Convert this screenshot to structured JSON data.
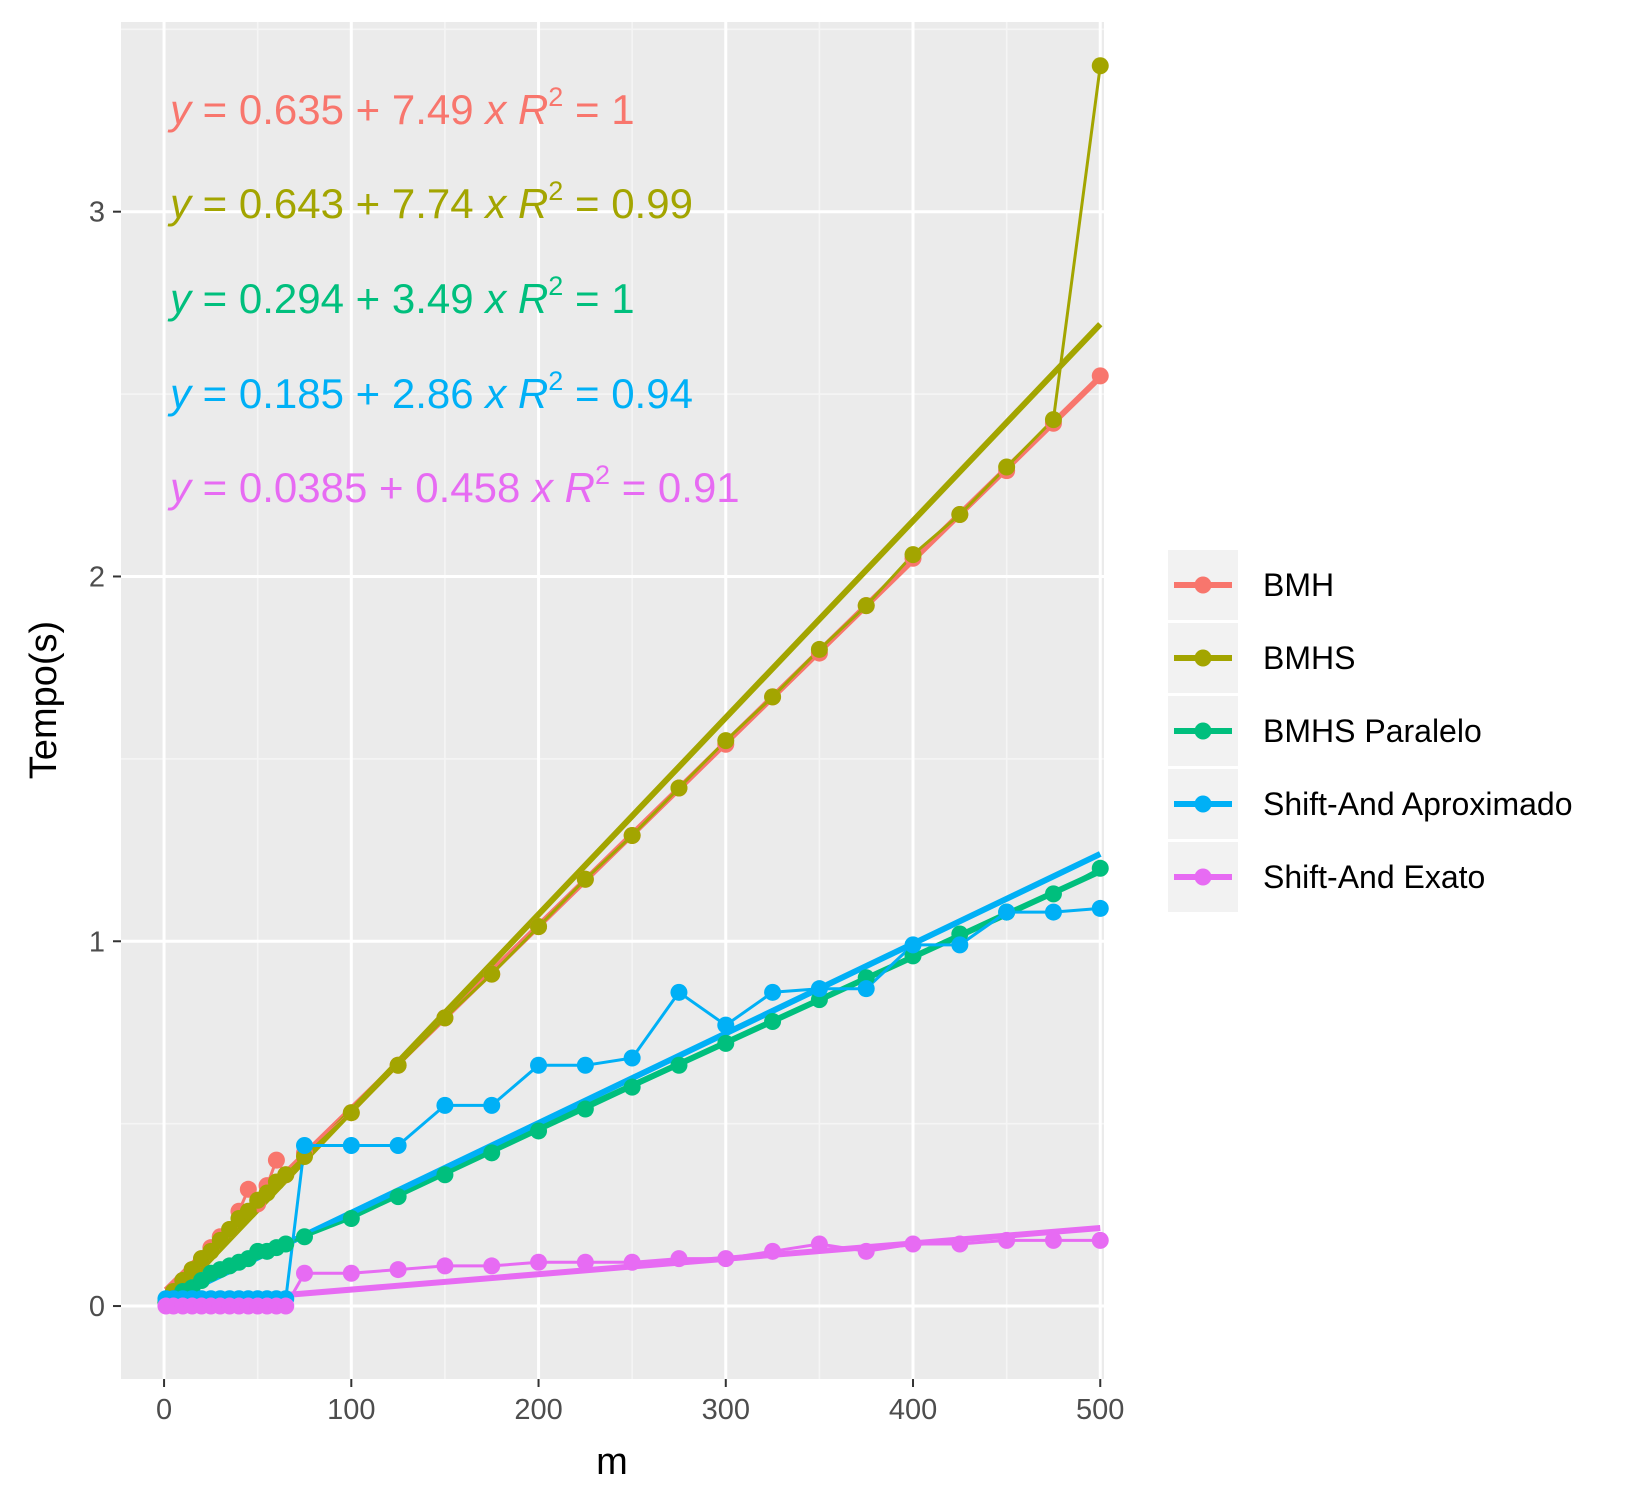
{
  "chart_data": {
    "type": "line",
    "xlabel": "m",
    "ylabel": "Tempo(s)",
    "xlim": [
      -23,
      502
    ],
    "ylim": [
      -0.2,
      3.52
    ],
    "x_ticks": [
      0,
      100,
      200,
      300,
      400,
      500
    ],
    "y_ticks": [
      0,
      1,
      2,
      3
    ],
    "grid": true,
    "legend_position": "right",
    "series": [
      {
        "name": "BMH",
        "color": "#F8766D",
        "x": [
          1,
          5,
          10,
          15,
          20,
          25,
          30,
          35,
          40,
          45,
          50,
          55,
          60,
          65,
          75,
          100,
          125,
          150,
          175,
          200,
          225,
          250,
          275,
          300,
          325,
          350,
          375,
          400,
          425,
          450,
          475,
          500
        ],
        "y": [
          0.01,
          0.04,
          0.07,
          0.1,
          0.13,
          0.16,
          0.19,
          0.21,
          0.26,
          0.32,
          0.28,
          0.33,
          0.4,
          0.36,
          0.42,
          0.53,
          0.66,
          0.79,
          0.91,
          1.04,
          1.17,
          1.29,
          1.42,
          1.54,
          1.67,
          1.79,
          1.92,
          2.05,
          2.17,
          2.29,
          2.42,
          2.55
        ],
        "fit": {
          "intercept": 0.635,
          "slope": 7.49,
          "r2": 1
        },
        "equation": {
          "lhs": "y",
          "eq": "=",
          "intercept": "0.635",
          "plus": "+",
          "slope": "7.49",
          "x": "x",
          "r": "R",
          "sup": "2",
          "r2": "1"
        }
      },
      {
        "name": "BMHS",
        "color": "#A3A500",
        "x": [
          1,
          5,
          10,
          15,
          20,
          25,
          30,
          35,
          40,
          45,
          50,
          55,
          60,
          65,
          75,
          100,
          125,
          150,
          175,
          200,
          225,
          250,
          275,
          300,
          325,
          350,
          375,
          400,
          425,
          450,
          475,
          500
        ],
        "y": [
          0.01,
          0.04,
          0.07,
          0.1,
          0.13,
          0.15,
          0.18,
          0.21,
          0.24,
          0.26,
          0.29,
          0.31,
          0.34,
          0.36,
          0.41,
          0.53,
          0.66,
          0.79,
          0.91,
          1.04,
          1.17,
          1.29,
          1.42,
          1.55,
          1.67,
          1.8,
          1.92,
          2.06,
          2.17,
          2.3,
          2.43,
          3.4
        ],
        "fit": {
          "intercept": 0.643,
          "slope": 7.74,
          "r2": 0.99
        },
        "equation": {
          "lhs": "y",
          "eq": "=",
          "intercept": "0.643",
          "plus": "+",
          "slope": "7.74",
          "x": "x",
          "r": "R",
          "sup": "2",
          "r2": "0.99"
        }
      },
      {
        "name": "BMHS Paralelo",
        "color": "#00BF7D",
        "x": [
          1,
          5,
          10,
          15,
          20,
          25,
          30,
          35,
          40,
          45,
          50,
          55,
          60,
          65,
          75,
          100,
          125,
          150,
          175,
          200,
          225,
          250,
          275,
          300,
          325,
          350,
          375,
          400,
          425,
          450,
          475,
          500
        ],
        "y": [
          0.01,
          0.02,
          0.04,
          0.05,
          0.07,
          0.09,
          0.1,
          0.11,
          0.12,
          0.13,
          0.15,
          0.15,
          0.16,
          0.17,
          0.19,
          0.24,
          0.3,
          0.36,
          0.42,
          0.48,
          0.54,
          0.6,
          0.66,
          0.72,
          0.78,
          0.84,
          0.9,
          0.96,
          1.02,
          1.08,
          1.13,
          1.2
        ],
        "fit": {
          "intercept": 0.294,
          "slope": 3.49,
          "r2": 1
        },
        "equation": {
          "lhs": "y",
          "eq": "=",
          "intercept": "0.294",
          "plus": "+",
          "slope": "3.49",
          "x": "x",
          "r": "R",
          "sup": "2",
          "r2": "1"
        }
      },
      {
        "name": "Shift-And Aproximado",
        "color": "#00B0F6",
        "x": [
          1,
          5,
          10,
          15,
          20,
          25,
          30,
          35,
          40,
          45,
          50,
          55,
          60,
          65,
          75,
          100,
          125,
          150,
          175,
          200,
          225,
          250,
          275,
          300,
          325,
          350,
          375,
          400,
          425,
          450,
          475,
          500
        ],
        "y": [
          0.02,
          0.02,
          0.02,
          0.02,
          0.02,
          0.02,
          0.02,
          0.02,
          0.02,
          0.02,
          0.02,
          0.02,
          0.02,
          0.02,
          0.44,
          0.44,
          0.44,
          0.55,
          0.55,
          0.66,
          0.66,
          0.68,
          0.86,
          0.77,
          0.86,
          0.87,
          0.87,
          0.99,
          0.99,
          1.08,
          1.08,
          1.09
        ],
        "fit": {
          "intercept": 0.185,
          "slope": 2.86,
          "r2": 0.94
        },
        "equation": {
          "lhs": "y",
          "eq": "=",
          "intercept": "0.185",
          "plus": "+",
          "slope": "2.86",
          "x": "x",
          "r": "R",
          "sup": "2",
          "r2": "0.94"
        }
      },
      {
        "name": "Shift-And Exato",
        "color": "#E76BF3",
        "x": [
          1,
          5,
          10,
          15,
          20,
          25,
          30,
          35,
          40,
          45,
          50,
          55,
          60,
          65,
          75,
          100,
          125,
          150,
          175,
          200,
          225,
          250,
          275,
          300,
          325,
          350,
          375,
          400,
          425,
          450,
          475,
          500
        ],
        "y": [
          0.0,
          0.0,
          0.0,
          0.0,
          0.0,
          0.0,
          0.0,
          0.0,
          0.0,
          0.0,
          0.0,
          0.0,
          0.0,
          0.0,
          0.09,
          0.09,
          0.1,
          0.11,
          0.11,
          0.12,
          0.12,
          0.12,
          0.13,
          0.13,
          0.15,
          0.17,
          0.15,
          0.17,
          0.17,
          0.18,
          0.18,
          0.18
        ],
        "fit": {
          "intercept": 0.0385,
          "slope": 0.458,
          "r2": 0.91
        },
        "equation": {
          "lhs": "y",
          "eq": "=",
          "intercept": "0.0385",
          "plus": "+",
          "slope": "0.458",
          "x": "x",
          "r": "R",
          "sup": "2",
          "r2": "0.91"
        }
      }
    ]
  }
}
